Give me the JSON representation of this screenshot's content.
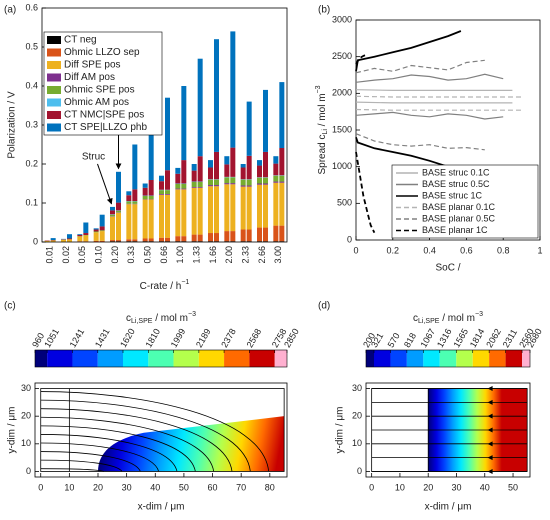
{
  "chart_data": [
    {
      "type": "bar",
      "panel": "(a)",
      "ylabel": "Polarization / V",
      "xlabel": {
        "text": "C-rate / h",
        "sup": "−1"
      },
      "categories": [
        "0.01",
        "0.02",
        "0.05",
        "0.10",
        "0.20",
        "0.33",
        "0.50",
        "0.66",
        "1.00",
        "1.33",
        "1.66",
        "2.00",
        "2.33",
        "2.66",
        "3.00"
      ],
      "ylim": [
        0,
        0.6
      ],
      "yticks": [
        0,
        0.1,
        0.2,
        0.3,
        0.4,
        0.5,
        0.6
      ],
      "legend": "upper left",
      "annotations": {
        "struc": "Struc",
        "planar": "Planar"
      },
      "series": [
        {
          "name": "CT neg",
          "color": "#000000",
          "struc": [
            0.001,
            0.001,
            0.001,
            0.001,
            0.002,
            0.002,
            0.002,
            0.002,
            0.002,
            0.002,
            0.002,
            0.002,
            0.002,
            0.002,
            0.002
          ],
          "planar": [
            0.001,
            0.001,
            0.001,
            0.001,
            0.002,
            0.002,
            0.002,
            0.002,
            0.002,
            0.002,
            0.002,
            0.002,
            0.002,
            0.002,
            0.002
          ]
        },
        {
          "name": "Ohmic LLZO sep",
          "color": "#d95319",
          "struc": [
            0,
            0,
            0.001,
            0.002,
            0.003,
            0.005,
            0.007,
            0.009,
            0.013,
            0.017,
            0.021,
            0.026,
            0.03,
            0.035,
            0.04
          ],
          "planar": [
            0,
            0,
            0.001,
            0.002,
            0.003,
            0.005,
            0.007,
            0.009,
            0.013,
            0.017,
            0.021,
            0.026,
            0.03,
            0.035,
            0.04
          ]
        },
        {
          "name": "Diff SPE pos",
          "color": "#edb120",
          "struc": [
            0.002,
            0.005,
            0.012,
            0.022,
            0.06,
            0.09,
            0.1,
            0.11,
            0.12,
            0.12,
            0.12,
            0.12,
            0.11,
            0.11,
            0.11
          ],
          "planar": [
            0.003,
            0.006,
            0.015,
            0.025,
            0.07,
            0.09,
            0.1,
            0.11,
            0.12,
            0.12,
            0.12,
            0.12,
            0.11,
            0.11,
            0.11
          ]
        },
        {
          "name": "Diff AM pos",
          "color": "#7e2f8e",
          "struc": [
            0,
            0,
            0,
            0,
            0.001,
            0.001,
            0.001,
            0.002,
            0.002,
            0.002,
            0.003,
            0.003,
            0.003,
            0.003,
            0.003
          ],
          "planar": [
            0,
            0,
            0,
            0,
            0.001,
            0.001,
            0.001,
            0.002,
            0.002,
            0.002,
            0.003,
            0.003,
            0.003,
            0.003,
            0.003
          ]
        },
        {
          "name": "Ohmic SPE pos",
          "color": "#77ac30",
          "struc": [
            0,
            0,
            0.001,
            0.002,
            0.004,
            0.006,
            0.008,
            0.01,
            0.012,
            0.013,
            0.014,
            0.015,
            0.015,
            0.015,
            0.015
          ],
          "planar": [
            0,
            0,
            0.001,
            0.002,
            0.004,
            0.006,
            0.008,
            0.01,
            0.012,
            0.013,
            0.014,
            0.015,
            0.015,
            0.015,
            0.015
          ]
        },
        {
          "name": "Ohmic AM pos",
          "color": "#4dbeee",
          "struc": [
            0,
            0,
            0,
            0,
            0.001,
            0.001,
            0.001,
            0.001,
            0.001,
            0.001,
            0.001,
            0.001,
            0.001,
            0.001,
            0.001
          ],
          "planar": [
            0,
            0,
            0,
            0,
            0.001,
            0.001,
            0.001,
            0.001,
            0.001,
            0.001,
            0.001,
            0.001,
            0.001,
            0.001,
            0.001
          ]
        },
        {
          "name": "CT NMC|SPE pos",
          "color": "#a2142f",
          "struc": [
            0.001,
            0.001,
            0.003,
            0.005,
            0.01,
            0.015,
            0.02,
            0.022,
            0.025,
            0.028,
            0.03,
            0.032,
            0.03,
            0.03,
            0.03
          ],
          "planar": [
            0.001,
            0.002,
            0.005,
            0.01,
            0.02,
            0.03,
            0.04,
            0.05,
            0.06,
            0.065,
            0.07,
            0.075,
            0.06,
            0.065,
            0.07
          ]
        },
        {
          "name": "CT SPE|LLZO phb",
          "color": "#0072bd",
          "struc": [
            0,
            0.001,
            0.002,
            0.003,
            0.009,
            0.01,
            0.011,
            0.014,
            0.015,
            0.017,
            0.019,
            0.021,
            0.009,
            0.014,
            0.019
          ],
          "planar": [
            0.005,
            0.011,
            0.027,
            0.03,
            0.079,
            0.115,
            0.151,
            0.186,
            0.19,
            0.25,
            0.289,
            0.298,
            0.139,
            0.159,
            0.169
          ]
        }
      ]
    },
    {
      "type": "line",
      "panel": "(b)",
      "ylabel": {
        "text": "Spread c",
        "sub": "Li",
        "unit": " / mol m",
        "sup": "−3"
      },
      "xlabel": "SoC /",
      "xlim": [
        0,
        1
      ],
      "xticks": [
        0,
        0.2,
        0.4,
        0.6,
        0.8,
        1
      ],
      "ylim": [
        0,
        3000
      ],
      "yticks": [
        0,
        500,
        1000,
        1500,
        2000,
        2500,
        3000
      ],
      "legend": "lower right",
      "series": [
        {
          "name": "BASE struc 0.1C",
          "color": "#b4b4b4",
          "dash": false,
          "x": [
            0,
            0.2,
            0.4,
            0.6,
            0.85
          ],
          "upper": [
            2050,
            2040,
            2040,
            2040,
            2040
          ],
          "lower": [
            1880,
            1870,
            1870,
            1870,
            1870
          ]
        },
        {
          "name": "BASE struc 0.5C",
          "color": "#808080",
          "dash": false,
          "x": [
            0,
            0.1,
            0.2,
            0.3,
            0.4,
            0.5,
            0.6,
            0.7,
            0.8
          ],
          "upper": [
            2150,
            2180,
            2200,
            2250,
            2230,
            2180,
            2200,
            2260,
            2200
          ],
          "lower": [
            1700,
            1720,
            1740,
            1700,
            1680,
            1720,
            1700,
            1650,
            1680
          ]
        },
        {
          "name": "BASE struc 1C",
          "color": "#000000",
          "dash": false,
          "x": [
            0,
            0.01,
            0.1,
            0.2,
            0.3,
            0.4,
            0.5,
            0.57
          ],
          "upper": [
            2300,
            2450,
            2500,
            2560,
            2620,
            2700,
            2780,
            2850
          ],
          "lower": [
            1400,
            1330,
            1250,
            1200,
            1150,
            1080,
            1000,
            950
          ]
        },
        {
          "name": "BASE planar 0.1C",
          "color": "#b4b4b4",
          "dash": true,
          "x": [
            0,
            0.2,
            0.4,
            0.6,
            0.8,
            0.9
          ],
          "upper": [
            1960,
            1950,
            1950,
            1950,
            1950,
            1950
          ],
          "lower": [
            1780,
            1770,
            1770,
            1770,
            1770,
            1770
          ]
        },
        {
          "name": "BASE planar 0.5C",
          "color": "#808080",
          "dash": true,
          "x": [
            0,
            0.1,
            0.2,
            0.3,
            0.4,
            0.5,
            0.6,
            0.7
          ],
          "upper": [
            2280,
            2340,
            2300,
            2380,
            2350,
            2320,
            2420,
            2450
          ],
          "lower": [
            1450,
            1350,
            1300,
            1280,
            1300,
            1250,
            1260,
            1230
          ]
        },
        {
          "name": "BASE planar 1C",
          "color": "#000000",
          "dash": true,
          "x": [
            0,
            0.02,
            0.04,
            0.06,
            0.08,
            0.1
          ],
          "upper": [
            2400,
            2480,
            2510,
            2530,
            null,
            null
          ],
          "lower": [
            1200,
            900,
            600,
            400,
            200,
            100
          ]
        }
      ]
    },
    {
      "type": "contour",
      "panel": "(c)",
      "colorbar_label": {
        "text": "c",
        "sub": "Li,SPE",
        "unit": " / mol m",
        "sup": "−3"
      },
      "colorbar_ticks": [
        960,
        1051,
        1241,
        1431,
        1620,
        1810,
        1999,
        2189,
        2378,
        2568,
        2758,
        2850
      ],
      "colors": [
        "#00007a",
        "#0000e0",
        "#0044ff",
        "#009cff",
        "#00e8ff",
        "#4cffb2",
        "#b4ff4c",
        "#ffd800",
        "#ff6a00",
        "#c80000",
        "#ffb0d0"
      ],
      "xlabel": "x-dim / μm",
      "ylabel": "y-dim / μm",
      "xlim": [
        -2,
        86
      ],
      "xticks": [
        0,
        10,
        20,
        30,
        40,
        50,
        60,
        70,
        80
      ],
      "ylim": [
        -2,
        32
      ],
      "yticks": [
        0,
        10,
        20,
        30
      ]
    },
    {
      "type": "contour",
      "panel": "(d)",
      "colorbar_label": {
        "text": "c",
        "sub": "Li,SPE",
        "unit": " / mol m",
        "sup": "−3"
      },
      "colorbar_ticks": [
        200,
        321,
        570,
        818,
        1067,
        1316,
        1565,
        1814,
        2062,
        2311,
        2560,
        2680
      ],
      "colors": [
        "#00007a",
        "#0000e0",
        "#0044ff",
        "#009cff",
        "#00e8ff",
        "#4cffb2",
        "#b4ff4c",
        "#ffd800",
        "#ff6a00",
        "#c80000",
        "#ffb0d0"
      ],
      "xlabel": "x-dim / μm",
      "ylabel": "y-dim / μm",
      "xlim": [
        -2,
        56
      ],
      "xticks": [
        0,
        10,
        20,
        30,
        40,
        50
      ],
      "ylim": [
        -2,
        32
      ],
      "yticks": [
        0,
        10,
        20,
        30
      ]
    }
  ]
}
